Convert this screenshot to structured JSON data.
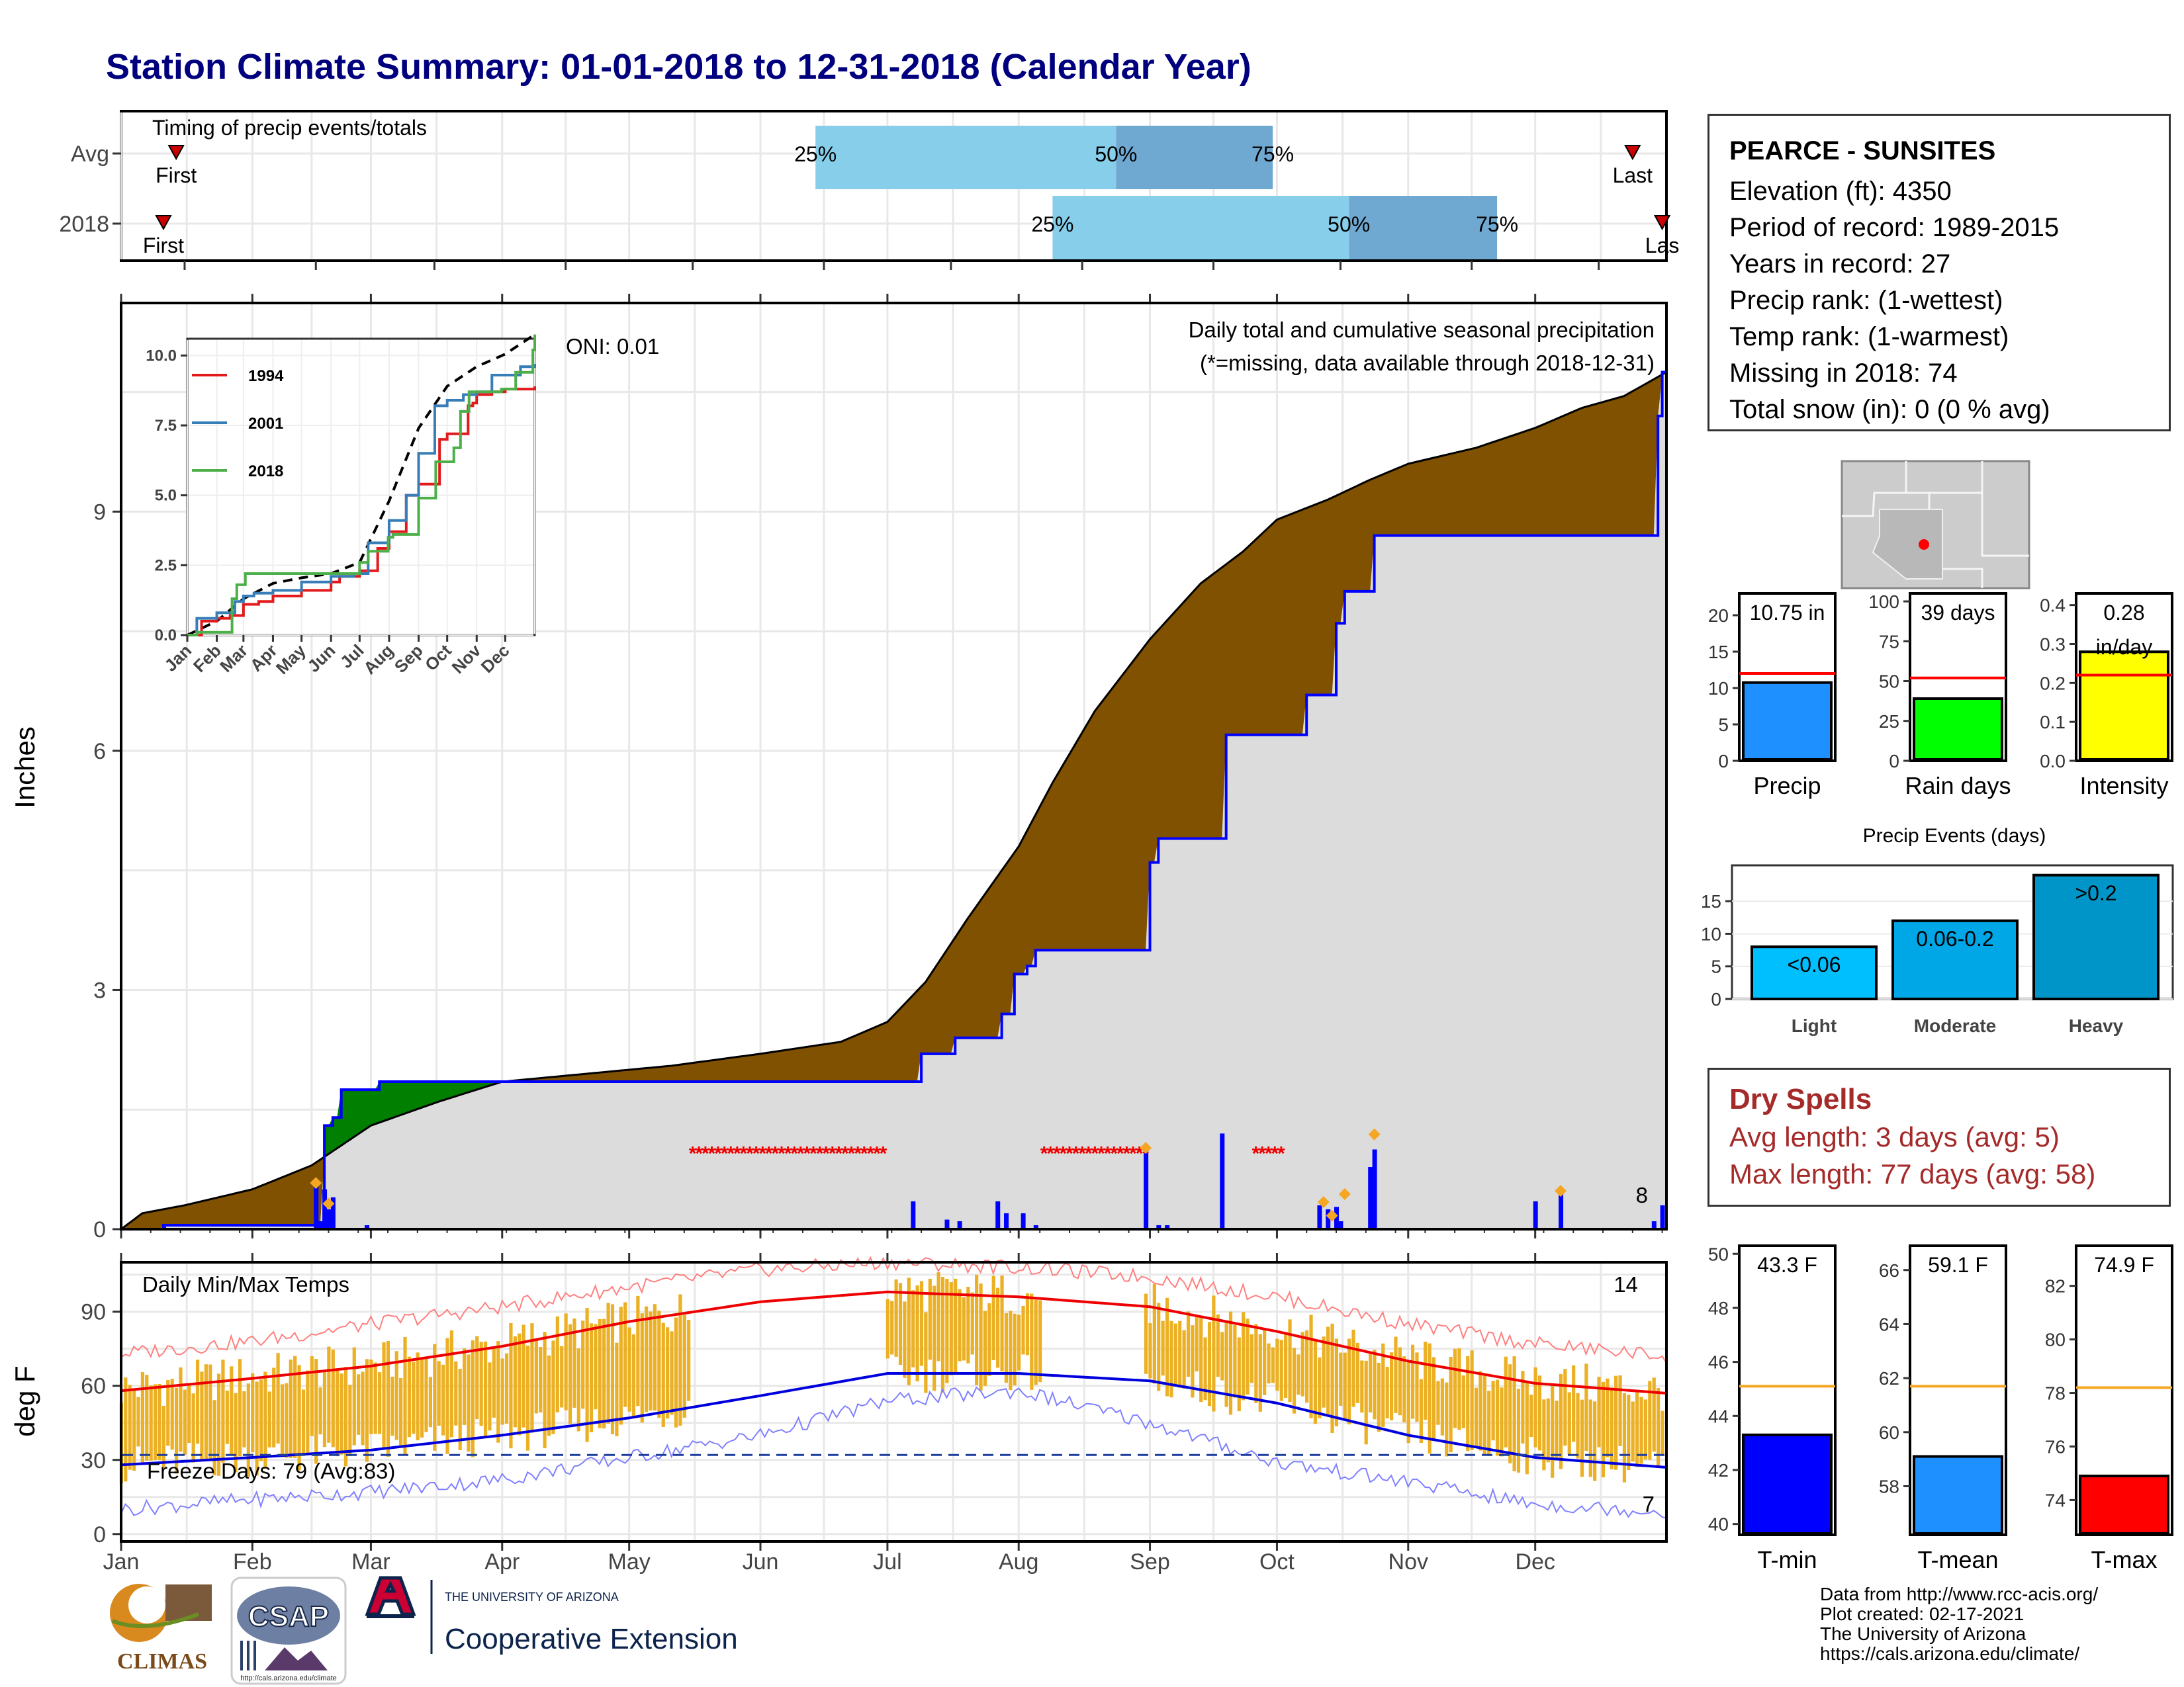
{
  "title": "Station Climate Summary: 01-01-2018 to 12-31-2018 (Calendar Year)",
  "timing": {
    "title": "Timing of precip events/totals",
    "rows": [
      "Avg",
      "2018"
    ],
    "first_label": "First",
    "last_label": "Last",
    "last_label_clipped": "Las",
    "avg": {
      "first_doy": 13,
      "q25_doy": 164,
      "q50_doy": 235,
      "q75_doy": 272,
      "last_doy": 357
    },
    "y2018": {
      "first_doy": 10,
      "q25_doy": 220,
      "q50_doy": 290,
      "q75_doy": 325,
      "last_doy": 364
    },
    "pct_labels": [
      "25%",
      "50%",
      "75%"
    ]
  },
  "chart_data": [
    {
      "type": "area",
      "name": "cumulative precipitation",
      "title": "Daily total and cumulative seasonal precipitation",
      "subtitle": "(*=missing, data available through 2018-12-31)",
      "oni": "ONI: 0.01",
      "ylabel": "Inches",
      "ylim": [
        0,
        11.6
      ],
      "yticks": [
        0,
        3,
        6,
        9
      ],
      "x_month_starts": [
        0,
        31,
        59,
        90,
        120,
        151,
        181,
        212,
        243,
        273,
        304,
        334,
        365
      ],
      "avg_cumulative": [
        [
          0,
          0.0
        ],
        [
          5,
          0.2
        ],
        [
          15,
          0.3
        ],
        [
          31,
          0.5
        ],
        [
          45,
          0.8
        ],
        [
          59,
          1.3
        ],
        [
          75,
          1.6
        ],
        [
          90,
          1.85
        ],
        [
          110,
          1.95
        ],
        [
          130,
          2.05
        ],
        [
          151,
          2.2
        ],
        [
          170,
          2.35
        ],
        [
          181,
          2.6
        ],
        [
          190,
          3.1
        ],
        [
          200,
          3.9
        ],
        [
          212,
          4.8
        ],
        [
          220,
          5.6
        ],
        [
          230,
          6.5
        ],
        [
          243,
          7.4
        ],
        [
          255,
          8.1
        ],
        [
          265,
          8.5
        ],
        [
          273,
          8.9
        ],
        [
          285,
          9.15
        ],
        [
          295,
          9.4
        ],
        [
          304,
          9.6
        ],
        [
          320,
          9.8
        ],
        [
          334,
          10.05
        ],
        [
          345,
          10.3
        ],
        [
          355,
          10.45
        ],
        [
          365,
          10.75
        ]
      ],
      "obs_cumulative": [
        [
          0,
          0.0
        ],
        [
          9,
          0.0
        ],
        [
          10,
          0.05
        ],
        [
          47,
          0.05
        ],
        [
          48,
          1.3
        ],
        [
          50,
          1.4
        ],
        [
          52,
          1.75
        ],
        [
          60,
          1.75
        ],
        [
          61,
          1.85
        ],
        [
          188,
          1.85
        ],
        [
          189,
          2.2
        ],
        [
          196,
          2.2
        ],
        [
          197,
          2.4
        ],
        [
          207,
          2.4
        ],
        [
          208,
          2.7
        ],
        [
          210,
          2.7
        ],
        [
          211,
          3.2
        ],
        [
          214,
          3.3
        ],
        [
          216,
          3.5
        ],
        [
          242,
          3.5
        ],
        [
          243,
          4.6
        ],
        [
          245,
          4.9
        ],
        [
          260,
          4.9
        ],
        [
          261,
          6.2
        ],
        [
          279,
          6.2
        ],
        [
          280,
          6.7
        ],
        [
          286,
          6.7
        ],
        [
          287,
          7.6
        ],
        [
          289,
          8.0
        ],
        [
          295,
          8.0
        ],
        [
          296,
          8.7
        ],
        [
          362,
          8.7
        ],
        [
          363,
          10.2
        ],
        [
          364,
          10.75
        ],
        [
          365,
          10.75
        ]
      ],
      "observed_line_color": "#0000ff",
      "deficit_color": "#7f5100",
      "surplus_color": "#007f00",
      "daily_bars": [
        [
          10,
          0.03
        ],
        [
          46,
          0.55
        ],
        [
          47,
          0.1
        ],
        [
          48,
          0.5
        ],
        [
          49,
          0.25
        ],
        [
          50,
          0.4
        ],
        [
          58,
          0.05
        ],
        [
          187,
          0.35
        ],
        [
          195,
          0.12
        ],
        [
          198,
          0.1
        ],
        [
          207,
          0.35
        ],
        [
          209,
          0.2
        ],
        [
          213,
          0.2
        ],
        [
          216,
          0.05
        ],
        [
          242,
          1.0
        ],
        [
          245,
          0.05
        ],
        [
          247,
          0.05
        ],
        [
          260,
          1.2
        ],
        [
          283,
          0.3
        ],
        [
          285,
          0.25
        ],
        [
          287,
          0.28
        ],
        [
          288,
          0.1
        ],
        [
          295,
          0.78
        ],
        [
          296,
          1.0
        ],
        [
          334,
          0.35
        ],
        [
          340,
          0.45
        ],
        [
          362,
          0.1
        ],
        [
          364,
          0.3
        ]
      ],
      "extreme_markers": [
        [
          46,
          0.58
        ],
        [
          49,
          0.32
        ],
        [
          242,
          1.02
        ],
        [
          284,
          0.34
        ],
        [
          286,
          0.17
        ],
        [
          289,
          0.44
        ],
        [
          296,
          1.19
        ],
        [
          340,
          0.48
        ]
      ],
      "extreme_count": "8",
      "missing_ranges": [
        [
          135,
          181
        ],
        [
          218,
          242
        ],
        [
          268,
          275
        ]
      ],
      "missing_y": 1.0
    },
    {
      "type": "line",
      "name": "inset cumulative precipitation",
      "ylim": [
        0,
        10.6
      ],
      "yticks": [
        0.0,
        2.5,
        5.0,
        7.5,
        10.0
      ],
      "x_labels": [
        "Jan",
        "Feb",
        "Mar",
        "Apr",
        "May",
        "Jun",
        "Jul",
        "Aug",
        "Sep",
        "Oct",
        "Nov",
        "Dec"
      ],
      "series": [
        {
          "name": "1994",
          "color": "#e31a1c",
          "points": [
            [
              0,
              0.0
            ],
            [
              15,
              0.5
            ],
            [
              31,
              0.6
            ],
            [
              45,
              0.7
            ],
            [
              59,
              1.1
            ],
            [
              75,
              1.2
            ],
            [
              90,
              1.4
            ],
            [
              120,
              1.6
            ],
            [
              151,
              1.9
            ],
            [
              160,
              2.1
            ],
            [
              181,
              2.3
            ],
            [
              200,
              3.1
            ],
            [
              212,
              3.7
            ],
            [
              230,
              5.0
            ],
            [
              243,
              5.4
            ],
            [
              258,
              5.4
            ],
            [
              265,
              7.0
            ],
            [
              273,
              7.2
            ],
            [
              295,
              8.2
            ],
            [
              300,
              8.3
            ],
            [
              304,
              8.6
            ],
            [
              320,
              8.7
            ],
            [
              334,
              8.8
            ],
            [
              365,
              8.9
            ]
          ]
        },
        {
          "name": "2001",
          "color": "#377eb8",
          "points": [
            [
              0,
              0.0
            ],
            [
              10,
              0.6
            ],
            [
              31,
              0.8
            ],
            [
              50,
              1.2
            ],
            [
              59,
              1.4
            ],
            [
              70,
              1.5
            ],
            [
              90,
              1.6
            ],
            [
              120,
              1.9
            ],
            [
              151,
              2.1
            ],
            [
              175,
              2.2
            ],
            [
              190,
              3.3
            ],
            [
              212,
              4.1
            ],
            [
              230,
              5.0
            ],
            [
              243,
              6.5
            ],
            [
              260,
              8.2
            ],
            [
              273,
              8.4
            ],
            [
              290,
              8.6
            ],
            [
              304,
              8.7
            ],
            [
              320,
              9.3
            ],
            [
              334,
              9.3
            ],
            [
              350,
              9.6
            ],
            [
              365,
              9.7
            ]
          ]
        },
        {
          "name": "2018",
          "color": "#4daf4a",
          "points": [
            [
              0,
              0.0
            ],
            [
              10,
              0.1
            ],
            [
              47,
              1.3
            ],
            [
              52,
              1.8
            ],
            [
              61,
              2.2
            ],
            [
              100,
              2.2
            ],
            [
              150,
              2.2
            ],
            [
              181,
              2.6
            ],
            [
              190,
              3.0
            ],
            [
              211,
              3.5
            ],
            [
              216,
              3.6
            ],
            [
              243,
              4.9
            ],
            [
              261,
              6.2
            ],
            [
              280,
              6.7
            ],
            [
              287,
              8.0
            ],
            [
              296,
              8.7
            ],
            [
              330,
              8.8
            ],
            [
              345,
              9.4
            ],
            [
              363,
              10.2
            ],
            [
              365,
              10.75
            ]
          ]
        }
      ],
      "avg_series": {
        "color": "#000000",
        "dash": true,
        "points": [
          [
            0,
            0.0
          ],
          [
            31,
            0.5
          ],
          [
            59,
            1.3
          ],
          [
            90,
            1.85
          ],
          [
            120,
            2.05
          ],
          [
            151,
            2.2
          ],
          [
            181,
            2.6
          ],
          [
            212,
            4.8
          ],
          [
            243,
            7.4
          ],
          [
            273,
            8.9
          ],
          [
            304,
            9.6
          ],
          [
            334,
            10.05
          ],
          [
            365,
            10.75
          ]
        ]
      }
    },
    {
      "type": "line",
      "name": "daily min/max temps",
      "title": "Daily Min/Max Temps",
      "ylabel": "deg F",
      "ylim": [
        -3,
        110
      ],
      "yticks": [
        0,
        30,
        60,
        90
      ],
      "freeze_line_y": 32,
      "freeze_label": "Freeze Days: 79 (Avg:83)",
      "hot_count": "14",
      "cold_count": "7",
      "normal_max": [
        [
          0,
          58
        ],
        [
          31,
          63
        ],
        [
          59,
          68
        ],
        [
          90,
          76
        ],
        [
          120,
          86
        ],
        [
          151,
          94
        ],
        [
          181,
          98
        ],
        [
          212,
          96
        ],
        [
          243,
          92
        ],
        [
          273,
          82
        ],
        [
          304,
          70
        ],
        [
          334,
          61
        ],
        [
          365,
          57
        ]
      ],
      "normal_min": [
        [
          0,
          28
        ],
        [
          31,
          31
        ],
        [
          59,
          34
        ],
        [
          90,
          40
        ],
        [
          120,
          47
        ],
        [
          151,
          56
        ],
        [
          181,
          65
        ],
        [
          212,
          65
        ],
        [
          243,
          62
        ],
        [
          273,
          53
        ],
        [
          304,
          40
        ],
        [
          334,
          31
        ],
        [
          365,
          27
        ]
      ],
      "record_max": [
        [
          0,
          73
        ],
        [
          31,
          78
        ],
        [
          59,
          85
        ],
        [
          90,
          92
        ],
        [
          120,
          100
        ],
        [
          151,
          107
        ],
        [
          181,
          110
        ],
        [
          212,
          108
        ],
        [
          243,
          104
        ],
        [
          273,
          96
        ],
        [
          304,
          85
        ],
        [
          334,
          77
        ],
        [
          365,
          72
        ]
      ],
      "record_min": [
        [
          0,
          10
        ],
        [
          31,
          14
        ],
        [
          59,
          17
        ],
        [
          90,
          22
        ],
        [
          120,
          31
        ],
        [
          151,
          40
        ],
        [
          181,
          54
        ],
        [
          212,
          58
        ],
        [
          243,
          45
        ],
        [
          273,
          29
        ],
        [
          304,
          21
        ],
        [
          334,
          12
        ],
        [
          365,
          9
        ]
      ],
      "observed_ranges": [
        [
          0,
          135
        ],
        [
          181,
          218
        ],
        [
          242,
          365
        ]
      ],
      "bar_color": "#ebb024"
    },
    {
      "type": "bar",
      "name": "precip summary",
      "categories": [
        "Precip",
        "Rain days",
        "Intensity"
      ],
      "values": [
        10.75,
        39,
        0.28
      ],
      "avg_values": [
        12,
        52,
        0.22
      ],
      "ylims": [
        [
          0,
          23
        ],
        [
          0,
          105
        ],
        [
          0,
          0.43
        ]
      ],
      "yticks": [
        [
          0,
          5,
          10,
          15,
          20
        ],
        [
          0,
          25,
          50,
          75,
          100
        ],
        [
          0.0,
          0.1,
          0.2,
          0.3,
          0.4
        ]
      ],
      "labels": [
        "10.75 in",
        "39 days",
        "0.28\nin/day"
      ],
      "colors": [
        "#1e90ff",
        "#00ff00",
        "#ffff00"
      ]
    },
    {
      "type": "bar",
      "name": "precip events",
      "title": "Precip Events (days)",
      "categories": [
        "Light",
        "Moderate",
        "Heavy"
      ],
      "values": [
        8,
        12,
        19
      ],
      "ylim": [
        0,
        20.5
      ],
      "yticks": [
        0,
        5,
        10,
        15
      ],
      "labels": [
        "<0.06",
        "0.06-0.2",
        ">0.2"
      ],
      "colors": [
        "#00bfff",
        "#00a7e6",
        "#0095c8"
      ]
    },
    {
      "type": "bar",
      "name": "temperature summary",
      "categories": [
        "T-min",
        "T-mean",
        "T-max"
      ],
      "values": [
        43.3,
        59.1,
        74.9
      ],
      "avg_values": [
        45.1,
        61.7,
        78.2
      ],
      "ylims": [
        [
          39.6,
          50.3
        ],
        [
          56.2,
          66.9
        ],
        [
          72.7,
          83.5
        ]
      ],
      "yticks": [
        [
          40,
          42,
          44,
          46,
          48,
          50
        ],
        [
          58,
          60,
          62,
          64,
          66
        ],
        [
          74,
          76,
          78,
          80,
          82
        ]
      ],
      "labels": [
        "43.3 F",
        "59.1 F",
        "74.9 F"
      ],
      "colors": [
        "#0000ff",
        "#1e90ff",
        "#ff0000"
      ]
    }
  ],
  "station": {
    "name": "PEARCE - SUNSITES",
    "lines": [
      "Elevation (ft): 4350",
      "Period of record: 1989-2015",
      "Years in record: 27",
      "Precip rank:  (1-wettest)",
      "Temp rank:  (1-warmest)",
      "Missing in 2018: 74",
      "Total snow (in): 0 (0 % avg)"
    ]
  },
  "dry_spells": {
    "title": "Dry Spells",
    "avg_line": "Avg length: 3 days (avg: 5)",
    "max_line": "Max length: 77 days (avg: 58)"
  },
  "months": [
    "Jan",
    "Feb",
    "Mar",
    "Apr",
    "May",
    "Jun",
    "Jul",
    "Aug",
    "Sep",
    "Oct",
    "Nov",
    "Dec"
  ],
  "credits": [
    "Data from http://www.rcc-acis.org/",
    "Plot created: 02-17-2021",
    "The University of Arizona",
    "https://cals.arizona.edu/climate/"
  ],
  "logos": {
    "climas": "CLIMAS",
    "csap": "CSAP",
    "csap_url": "http://cals.arizona.edu/climate",
    "ua_small": "THE UNIVERSITY OF ARIZONA",
    "ua_big": "Cooperative Extension"
  }
}
